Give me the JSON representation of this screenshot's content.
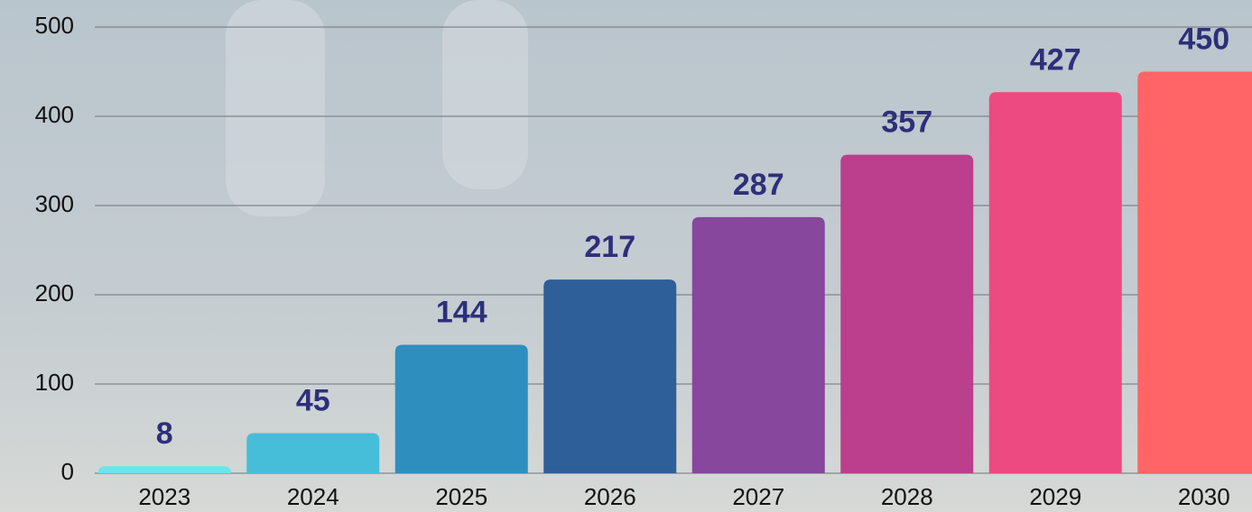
{
  "chart_data": {
    "type": "bar",
    "categories": [
      "2023",
      "2024",
      "2025",
      "2026",
      "2027",
      "2028",
      "2029",
      "2030"
    ],
    "values": [
      8,
      45,
      144,
      217,
      287,
      357,
      427,
      450
    ],
    "colors": [
      "#6fe3ea",
      "#46bdd9",
      "#2e8fbf",
      "#2e5f98",
      "#86479c",
      "#bb3f8c",
      "#ec4a80",
      "#ff6467"
    ],
    "ylim": [
      0,
      500
    ],
    "yticks": [
      0,
      100,
      200,
      300,
      400,
      500
    ],
    "grid": true
  }
}
